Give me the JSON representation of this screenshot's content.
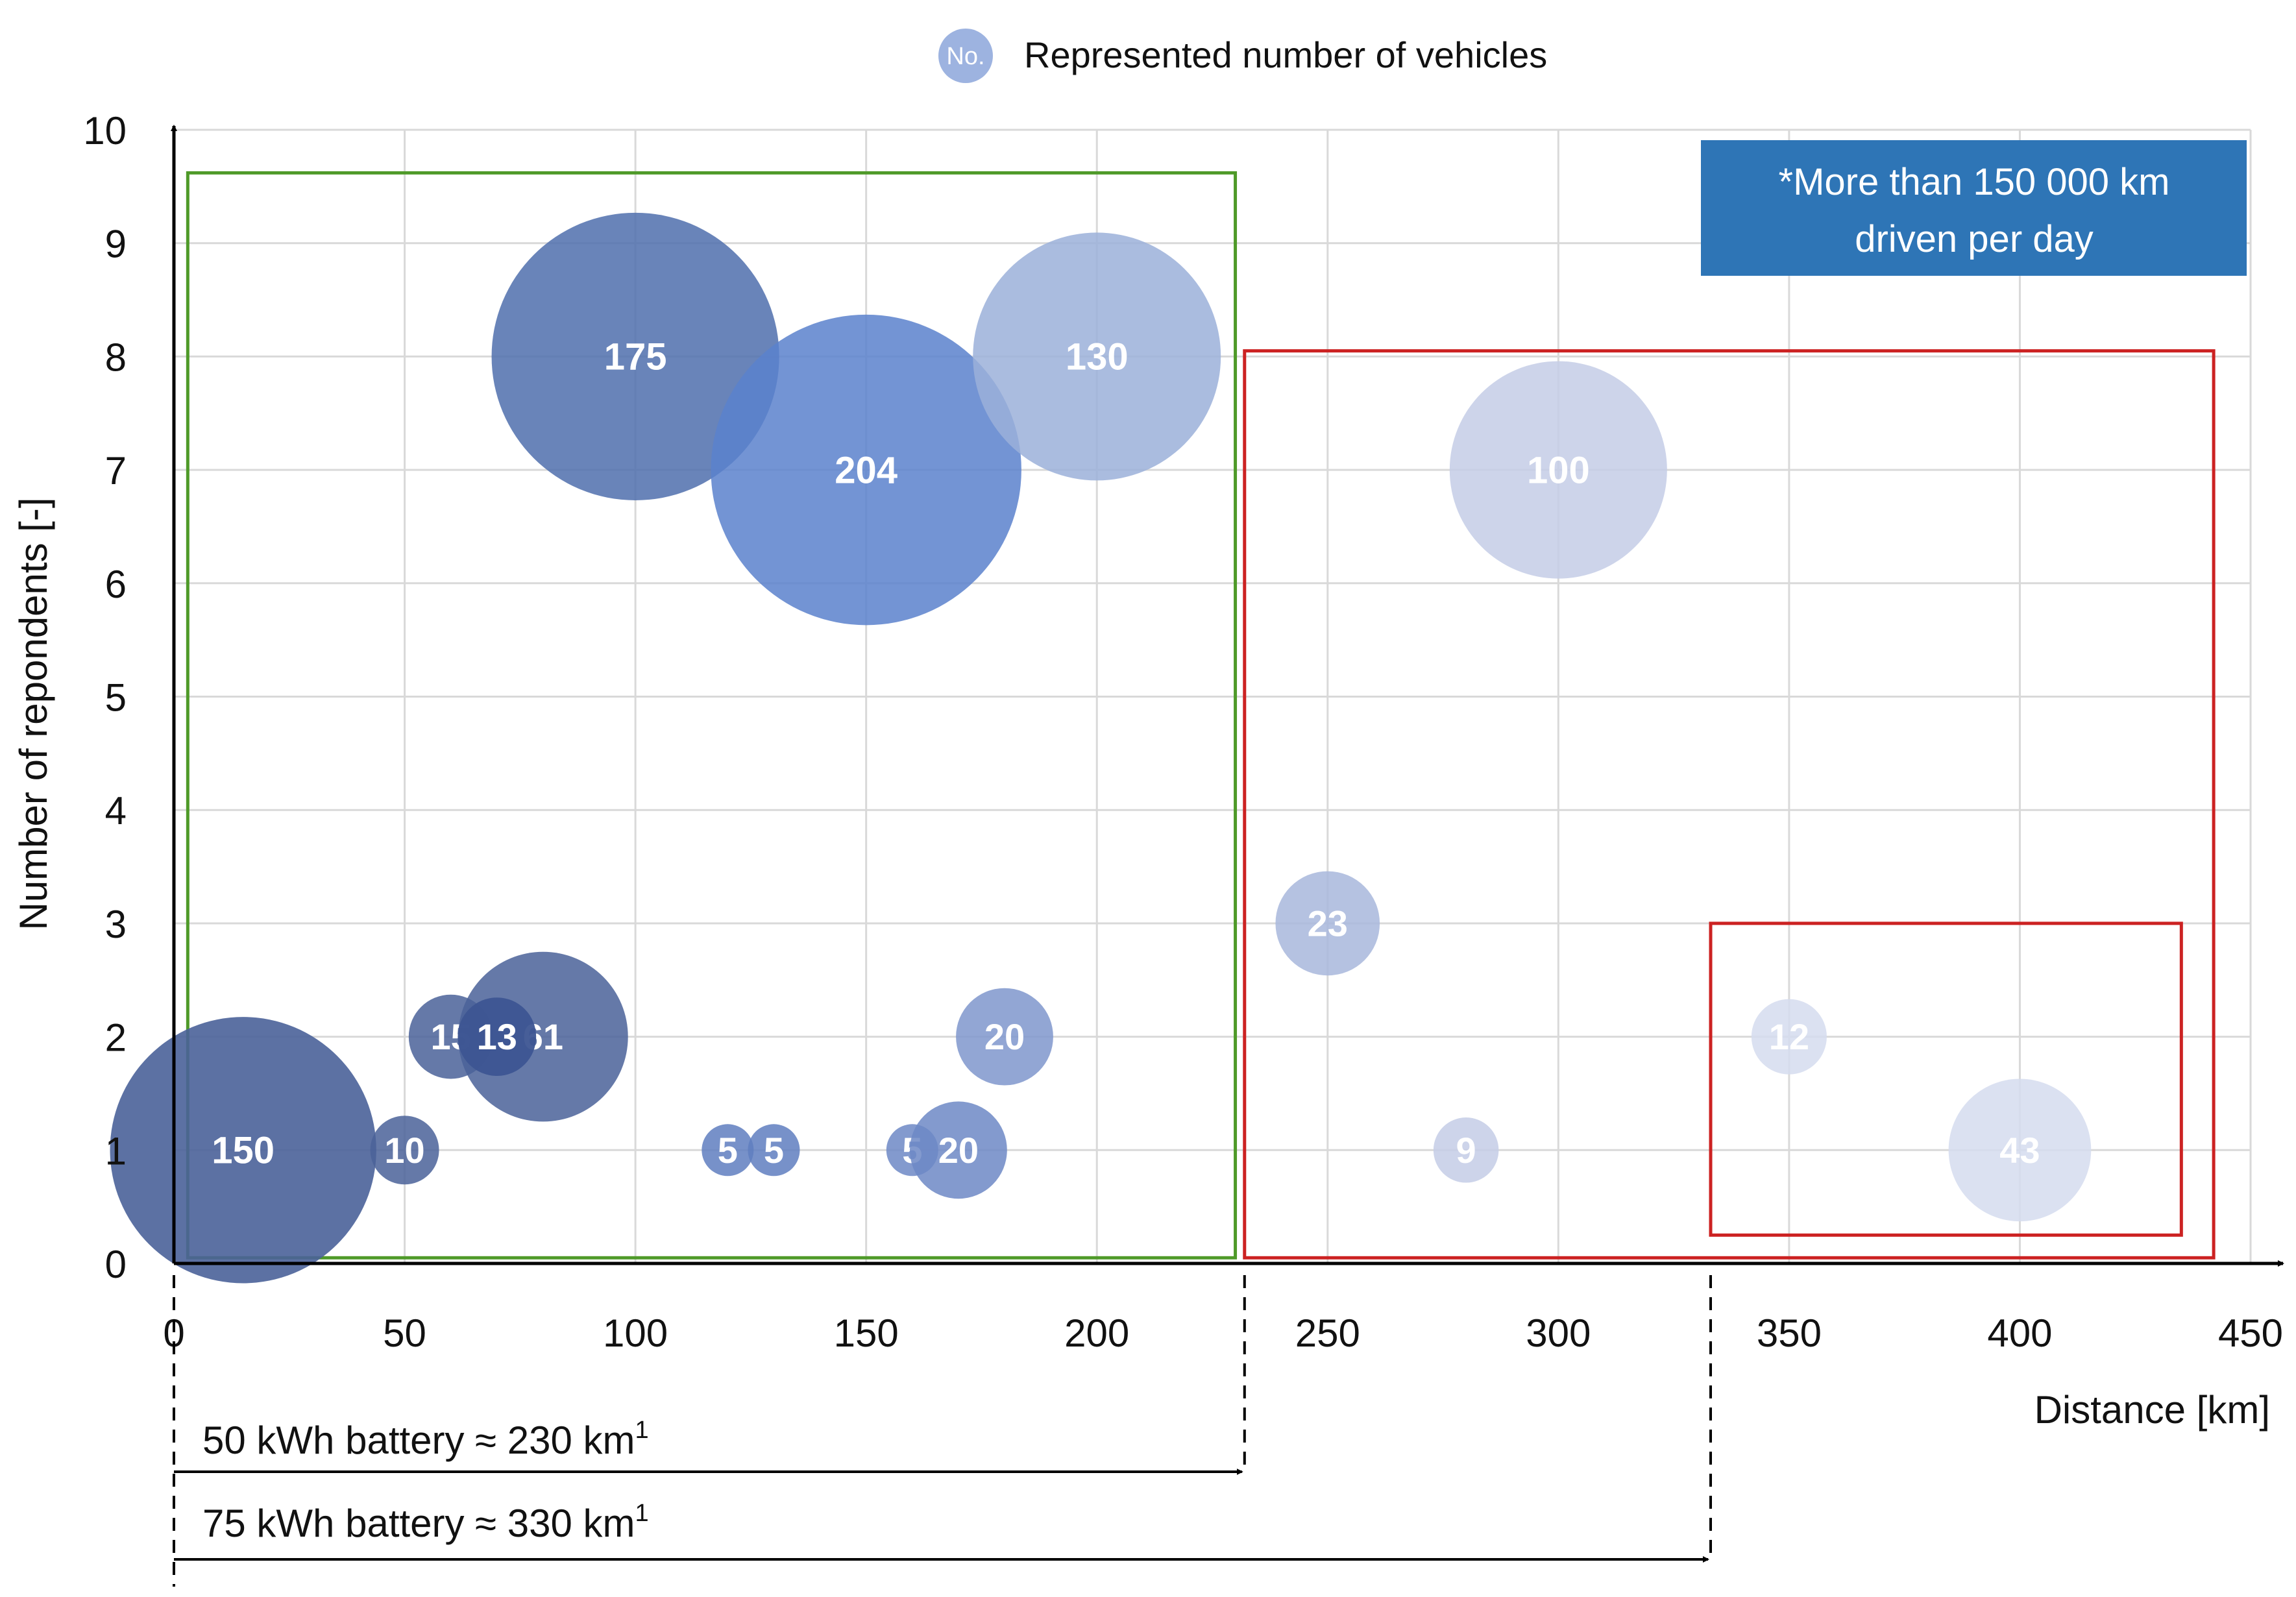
{
  "chart_data": {
    "type": "bubble",
    "legend": {
      "marker_label": "No.",
      "label": "Represented number of vehicles",
      "placement": "top-center"
    },
    "xlabel": "Distance [km]",
    "ylabel": "Number of repondents [-]",
    "xlim": [
      0,
      450
    ],
    "ylim": [
      0,
      10
    ],
    "x_ticks": [
      0,
      50,
      100,
      150,
      200,
      250,
      300,
      350,
      400,
      450
    ],
    "y_ticks": [
      0,
      1,
      2,
      3,
      4,
      5,
      6,
      7,
      8,
      9,
      10
    ],
    "grid": true,
    "points": [
      {
        "x": 15,
        "y": 1,
        "vehicles": 150,
        "label": "150",
        "color": "#4a6299",
        "opacity": 0.9
      },
      {
        "x": 50,
        "y": 1,
        "vehicles": 10,
        "label": "10",
        "color": "#4a6299",
        "opacity": 0.85
      },
      {
        "x": 60,
        "y": 2,
        "vehicles": 15,
        "label": "15",
        "color": "#4a6299",
        "opacity": 0.85
      },
      {
        "x": 80,
        "y": 2,
        "vehicles": 61,
        "label": "61",
        "color": "#4a6299",
        "opacity": 0.85
      },
      {
        "x": 70,
        "y": 2,
        "vehicles": 13,
        "label": "13",
        "color": "#3d5592",
        "opacity": 0.95
      },
      {
        "x": 100,
        "y": 8,
        "vehicles": 175,
        "label": "175",
        "color": "#4f6ead",
        "opacity": 0.85
      },
      {
        "x": 120,
        "y": 1,
        "vehicles": 5,
        "label": "5",
        "color": "#5f7ec0",
        "opacity": 0.85
      },
      {
        "x": 130,
        "y": 1,
        "vehicles": 5,
        "label": "5",
        "color": "#5f7ec0",
        "opacity": 0.85
      },
      {
        "x": 150,
        "y": 7,
        "vehicles": 204,
        "label": "204",
        "color": "#5a81cc",
        "opacity": 0.85
      },
      {
        "x": 160,
        "y": 1,
        "vehicles": 5,
        "label": "5",
        "color": "#6d88c6",
        "opacity": 0.85
      },
      {
        "x": 170,
        "y": 1,
        "vehicles": 20,
        "label": "20",
        "color": "#6d88c6",
        "opacity": 0.85
      },
      {
        "x": 180,
        "y": 2,
        "vehicles": 20,
        "label": "20",
        "color": "#7f97cc",
        "opacity": 0.85
      },
      {
        "x": 200,
        "y": 8,
        "vehicles": 130,
        "label": "130",
        "color": "#9bb0d9",
        "opacity": 0.85
      },
      {
        "x": 250,
        "y": 3,
        "vehicles": 23,
        "label": "23",
        "color": "#a8b7dc",
        "opacity": 0.85
      },
      {
        "x": 280,
        "y": 1,
        "vehicles": 9,
        "label": "9",
        "color": "#c4cde6",
        "opacity": 0.85
      },
      {
        "x": 300,
        "y": 7,
        "vehicles": 100,
        "label": "100",
        "color": "#c4cde6",
        "opacity": 0.85
      },
      {
        "x": 350,
        "y": 2,
        "vehicles": 12,
        "label": "12",
        "color": "#d5dcef",
        "opacity": 0.85
      },
      {
        "x": 400,
        "y": 1,
        "vehicles": 43,
        "label": "43",
        "color": "#d5dcef",
        "opacity": 0.85
      }
    ],
    "regions": [
      {
        "name": "green-region",
        "x": [
          3,
          230
        ],
        "y": [
          0.05,
          9.62
        ],
        "color": "#4f9a29"
      },
      {
        "name": "red-region-outer",
        "x": [
          232,
          442
        ],
        "y": [
          0.05,
          8.05
        ],
        "color": "#cc2222"
      },
      {
        "name": "red-region-inner",
        "x": [
          333,
          435
        ],
        "y": [
          0.25,
          3.0
        ],
        "color": "#cc2222"
      }
    ],
    "note": {
      "line1": "*More than 150 000 km",
      "line2": "driven per day",
      "color": "#2e75b6"
    },
    "annotations": [
      {
        "text": "50 kWh battery ≈ 230 km",
        "superscript": "1",
        "x_start": 0,
        "x_end": 232
      },
      {
        "text": "75 kWh battery ≈ 330 km",
        "superscript": "1",
        "x_start": 0,
        "x_end": 333
      }
    ]
  }
}
